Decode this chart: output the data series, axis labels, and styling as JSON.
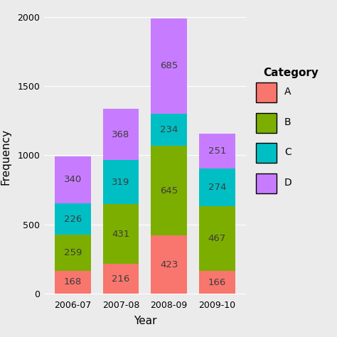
{
  "years": [
    "2006-07",
    "2007-08",
    "2008-09",
    "2009-10"
  ],
  "categories": [
    "A",
    "B",
    "C",
    "D"
  ],
  "values": {
    "A": [
      168,
      216,
      423,
      166
    ],
    "B": [
      259,
      431,
      645,
      467
    ],
    "C": [
      226,
      319,
      234,
      274
    ],
    "D": [
      340,
      368,
      685,
      251
    ]
  },
  "colors": {
    "A": "#F8766D",
    "B": "#7CAE00",
    "C": "#00BFC4",
    "D": "#C77CFF"
  },
  "xlabel": "Year",
  "ylabel": "Frequency",
  "legend_title": "Category",
  "ylim": [
    0,
    2000
  ],
  "yticks": [
    0,
    500,
    1000,
    1500,
    2000
  ],
  "bg_color": "#EBEBEB",
  "grid_color": "#FFFFFF",
  "bar_width": 0.75,
  "label_fontsize": 9.5,
  "axis_label_fontsize": 11,
  "tick_fontsize": 9,
  "legend_fontsize": 10
}
